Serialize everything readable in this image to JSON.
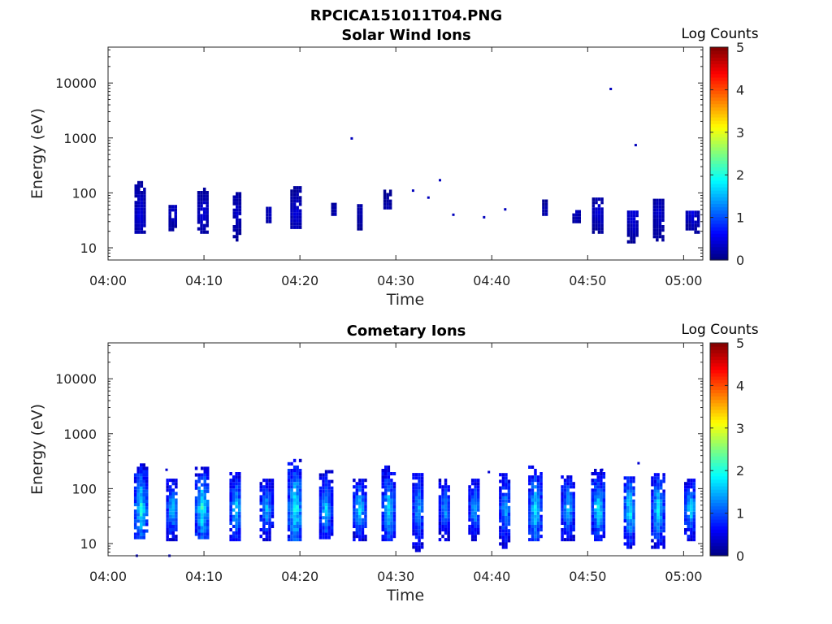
{
  "figure_title": "RPCICA151011T04.PNG",
  "colormap": [
    "#00007f",
    "#0000ff",
    "#007fff",
    "#00ffff",
    "#7fff7f",
    "#ffff00",
    "#ff7f00",
    "#ff0000",
    "#7f0000"
  ],
  "chart_data": [
    {
      "type": "heatmap",
      "title": "Solar Wind Ions",
      "xlabel": "Time",
      "ylabel": "Energy (eV)",
      "x_ticks": [
        "04:00",
        "04:10",
        "04:20",
        "04:30",
        "04:40",
        "04:50",
        "05:00"
      ],
      "x_range_min": [
        0,
        62
      ],
      "y_ticks": [
        "10",
        "100",
        "1000",
        "10000"
      ],
      "y_scale": "log",
      "y_range_eV": [
        6,
        45000
      ],
      "colorbar": {
        "label": "Log Counts",
        "ticks": [
          "0",
          "1",
          "2",
          "3",
          "4",
          "5"
        ],
        "range": [
          0,
          5
        ]
      },
      "grid": false,
      "clusters": [
        {
          "t": 3.2,
          "w": 0.9,
          "elo": 18,
          "ehi": 150,
          "peak": 0.55
        },
        {
          "t": 6.7,
          "w": 0.8,
          "elo": 20,
          "ehi": 55,
          "peak": 0.45
        },
        {
          "t": 9.8,
          "w": 1.0,
          "elo": 18,
          "ehi": 110,
          "peak": 0.5
        },
        {
          "t": 13.3,
          "w": 0.6,
          "elo": 13,
          "ehi": 90,
          "peak": 0.4
        },
        {
          "t": 16.7,
          "w": 0.5,
          "elo": 28,
          "ehi": 55,
          "peak": 0.35
        },
        {
          "t": 19.5,
          "w": 1.0,
          "elo": 22,
          "ehi": 120,
          "peak": 0.5
        },
        {
          "t": 23.5,
          "w": 0.5,
          "elo": 38,
          "ehi": 65,
          "peak": 0.3
        },
        {
          "t": 26.2,
          "w": 0.5,
          "elo": 18,
          "ehi": 55,
          "peak": 0.3
        },
        {
          "t": 29.0,
          "w": 0.6,
          "elo": 50,
          "ehi": 110,
          "peak": 0.3
        },
        {
          "t": 45.5,
          "w": 0.5,
          "elo": 38,
          "ehi": 75,
          "peak": 0.3
        },
        {
          "t": 48.7,
          "w": 0.6,
          "elo": 28,
          "ehi": 45,
          "peak": 0.35
        },
        {
          "t": 51.0,
          "w": 1.1,
          "elo": 18,
          "ehi": 75,
          "peak": 0.5
        },
        {
          "t": 54.6,
          "w": 1.0,
          "elo": 12,
          "ehi": 45,
          "peak": 0.55
        },
        {
          "t": 57.3,
          "w": 1.0,
          "elo": 13,
          "ehi": 70,
          "peak": 0.45
        },
        {
          "t": 60.8,
          "w": 1.2,
          "elo": 18,
          "ehi": 45,
          "peak": 0.55
        }
      ],
      "points": [
        {
          "t": 25.4,
          "e": 980,
          "v": 0.3
        },
        {
          "t": 52.4,
          "e": 7800,
          "v": 0.3
        },
        {
          "t": 55.0,
          "e": 740,
          "v": 0.3
        },
        {
          "t": 31.8,
          "e": 110,
          "v": 0.3
        },
        {
          "t": 33.4,
          "e": 82,
          "v": 0.3
        },
        {
          "t": 34.6,
          "e": 170,
          "v": 0.3
        },
        {
          "t": 36.0,
          "e": 40,
          "v": 0.3
        },
        {
          "t": 39.2,
          "e": 36,
          "v": 0.3
        },
        {
          "t": 41.4,
          "e": 50,
          "v": 0.3
        }
      ]
    },
    {
      "type": "heatmap",
      "title": "Cometary Ions",
      "xlabel": "Time",
      "ylabel": "Energy (eV)",
      "x_ticks": [
        "04:00",
        "04:10",
        "04:20",
        "04:30",
        "04:40",
        "04:50",
        "05:00"
      ],
      "x_range_min": [
        0,
        62
      ],
      "y_ticks": [
        "10",
        "100",
        "1000",
        "10000"
      ],
      "y_scale": "log",
      "y_range_eV": [
        6,
        45000
      ],
      "colorbar": {
        "label": "Log Counts",
        "ticks": [
          "0",
          "1",
          "2",
          "3",
          "4",
          "5"
        ],
        "range": [
          0,
          5
        ]
      },
      "grid": false,
      "clusters": [
        {
          "t": 3.3,
          "w": 1.2,
          "elo": 12,
          "ehi": 270,
          "peak": 2.0
        },
        {
          "t": 6.6,
          "w": 1.1,
          "elo": 11,
          "ehi": 150,
          "peak": 1.7
        },
        {
          "t": 9.7,
          "w": 1.3,
          "elo": 12,
          "ehi": 250,
          "peak": 2.1
        },
        {
          "t": 13.2,
          "w": 1.1,
          "elo": 11,
          "ehi": 180,
          "peak": 1.8
        },
        {
          "t": 16.4,
          "w": 1.2,
          "elo": 11,
          "ehi": 140,
          "peak": 1.6
        },
        {
          "t": 19.4,
          "w": 1.4,
          "elo": 11,
          "ehi": 330,
          "peak": 2.1
        },
        {
          "t": 22.6,
          "w": 1.2,
          "elo": 12,
          "ehi": 200,
          "peak": 1.7
        },
        {
          "t": 26.1,
          "w": 1.2,
          "elo": 11,
          "ehi": 150,
          "peak": 1.8
        },
        {
          "t": 29.1,
          "w": 1.2,
          "elo": 11,
          "ehi": 260,
          "peak": 1.8
        },
        {
          "t": 32.2,
          "w": 1.0,
          "elo": 7,
          "ehi": 190,
          "peak": 1.6
        },
        {
          "t": 35.0,
          "w": 1.1,
          "elo": 11,
          "ehi": 150,
          "peak": 1.5
        },
        {
          "t": 38.1,
          "w": 1.1,
          "elo": 11,
          "ehi": 150,
          "peak": 1.6
        },
        {
          "t": 41.3,
          "w": 1.1,
          "elo": 8,
          "ehi": 190,
          "peak": 1.6
        },
        {
          "t": 44.4,
          "w": 1.2,
          "elo": 11,
          "ehi": 260,
          "peak": 1.9
        },
        {
          "t": 47.8,
          "w": 1.2,
          "elo": 11,
          "ehi": 160,
          "peak": 1.7
        },
        {
          "t": 51.0,
          "w": 1.3,
          "elo": 11,
          "ehi": 210,
          "peak": 1.9
        },
        {
          "t": 54.3,
          "w": 1.1,
          "elo": 8,
          "ehi": 150,
          "peak": 2.0
        },
        {
          "t": 57.2,
          "w": 1.2,
          "elo": 8,
          "ehi": 180,
          "peak": 1.9
        },
        {
          "t": 60.6,
          "w": 1.1,
          "elo": 11,
          "ehi": 140,
          "peak": 1.9
        }
      ],
      "points": [
        {
          "t": 6.1,
          "e": 220,
          "v": 0.4
        },
        {
          "t": 51.5,
          "e": 220,
          "v": 0.4
        },
        {
          "t": 55.3,
          "e": 290,
          "v": 0.4
        },
        {
          "t": 39.7,
          "e": 200,
          "v": 0.4
        },
        {
          "t": 3.0,
          "e": 6,
          "v": 0.4
        },
        {
          "t": 6.4,
          "e": 6,
          "v": 0.4
        }
      ]
    }
  ]
}
